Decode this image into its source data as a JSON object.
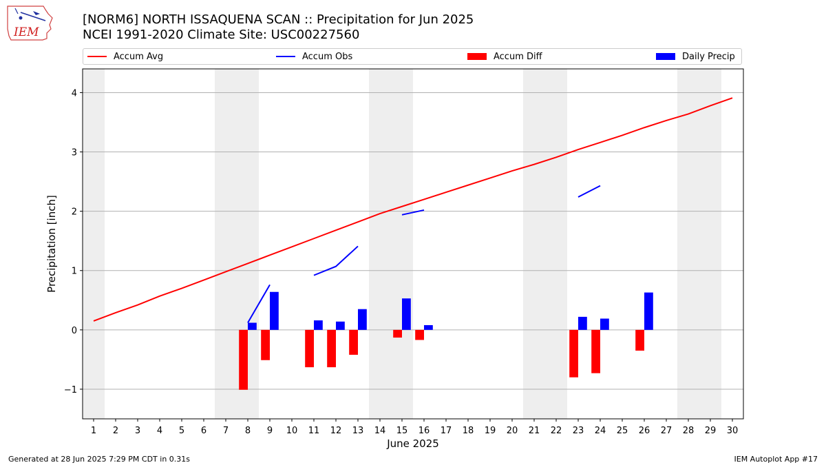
{
  "header": {
    "logo_text": "IEM",
    "title_line1": "[NORM6] NORTH ISSAQUENA SCAN :: Precipitation for Jun 2025",
    "title_line2": "NCEI 1991-2020 Climate Site: USC00227560"
  },
  "legend": {
    "items": [
      {
        "label": "Accum Avg",
        "color": "#ff0000",
        "kind": "line"
      },
      {
        "label": "Accum Obs",
        "color": "#0000ff",
        "kind": "line"
      },
      {
        "label": "Accum Diff",
        "color": "#ff0000",
        "kind": "bar"
      },
      {
        "label": "Daily Precip",
        "color": "#0000ff",
        "kind": "bar"
      }
    ]
  },
  "footer": {
    "left": "Generated at 28 Jun 2025 7:29 PM CDT in 0.31s",
    "right": "IEM Autoplot App #17"
  },
  "chart_data": {
    "type": "bar",
    "xlabel": "June 2025",
    "ylabel": "Precipitation [inch]",
    "xlim": [
      0.5,
      30.5
    ],
    "ylim": [
      -1.5,
      4.4
    ],
    "x_ticks": [
      1,
      2,
      3,
      4,
      5,
      6,
      7,
      8,
      9,
      10,
      11,
      12,
      13,
      14,
      15,
      16,
      17,
      18,
      19,
      20,
      21,
      22,
      23,
      24,
      25,
      26,
      27,
      28,
      29,
      30
    ],
    "y_ticks": [
      -1,
      0,
      1,
      2,
      3,
      4
    ],
    "y_tick_labels": [
      "−1",
      "0",
      "1",
      "2",
      "3",
      "4"
    ],
    "grid": "horizontal",
    "legend_position": "top",
    "weekend_shading": [
      [
        0.5,
        1.5
      ],
      [
        6.5,
        8.5
      ],
      [
        13.5,
        15.5
      ],
      [
        20.5,
        22.5
      ],
      [
        27.5,
        29.5
      ]
    ],
    "weekend_color": "#eeeeee",
    "accum_avg": {
      "name": "Accum Avg",
      "color": "#ff0000",
      "x": [
        1,
        2,
        3,
        4,
        5,
        6,
        7,
        8,
        9,
        10,
        11,
        12,
        13,
        14,
        15,
        16,
        17,
        18,
        19,
        20,
        21,
        22,
        23,
        24,
        25,
        26,
        27,
        28,
        29,
        30
      ],
      "values": [
        0.15,
        0.29,
        0.42,
        0.57,
        0.7,
        0.84,
        0.98,
        1.12,
        1.26,
        1.4,
        1.54,
        1.68,
        1.82,
        1.96,
        2.08,
        2.2,
        2.32,
        2.44,
        2.56,
        2.68,
        2.79,
        2.91,
        3.04,
        3.16,
        3.28,
        3.41,
        3.53,
        3.64,
        3.78,
        3.91
      ]
    },
    "accum_obs": {
      "name": "Accum Obs",
      "color": "#0000ff",
      "segments": [
        {
          "x": [
            8,
            9
          ],
          "values": [
            0.12,
            0.76
          ]
        },
        {
          "x": [
            11,
            12,
            13
          ],
          "values": [
            0.92,
            1.07,
            1.41
          ]
        },
        {
          "x": [
            15,
            16
          ],
          "values": [
            1.94,
            2.02
          ]
        },
        {
          "x": [
            23,
            24
          ],
          "values": [
            2.24,
            2.43
          ]
        }
      ]
    },
    "accum_diff": {
      "name": "Accum Diff",
      "color": "#ff0000",
      "x": [
        8,
        9,
        11,
        12,
        13,
        15,
        16,
        23,
        24,
        26
      ],
      "values": [
        -1.01,
        -0.51,
        -0.63,
        -0.63,
        -0.42,
        -0.13,
        -0.17,
        -0.8,
        -0.73,
        -0.35
      ]
    },
    "daily_precip": {
      "name": "Daily Precip",
      "color": "#0000ff",
      "x": [
        8,
        9,
        11,
        12,
        13,
        15,
        16,
        23,
        24,
        26
      ],
      "values": [
        0.12,
        0.64,
        0.16,
        0.14,
        0.35,
        0.53,
        0.08,
        0.22,
        0.19,
        0.63
      ]
    }
  }
}
